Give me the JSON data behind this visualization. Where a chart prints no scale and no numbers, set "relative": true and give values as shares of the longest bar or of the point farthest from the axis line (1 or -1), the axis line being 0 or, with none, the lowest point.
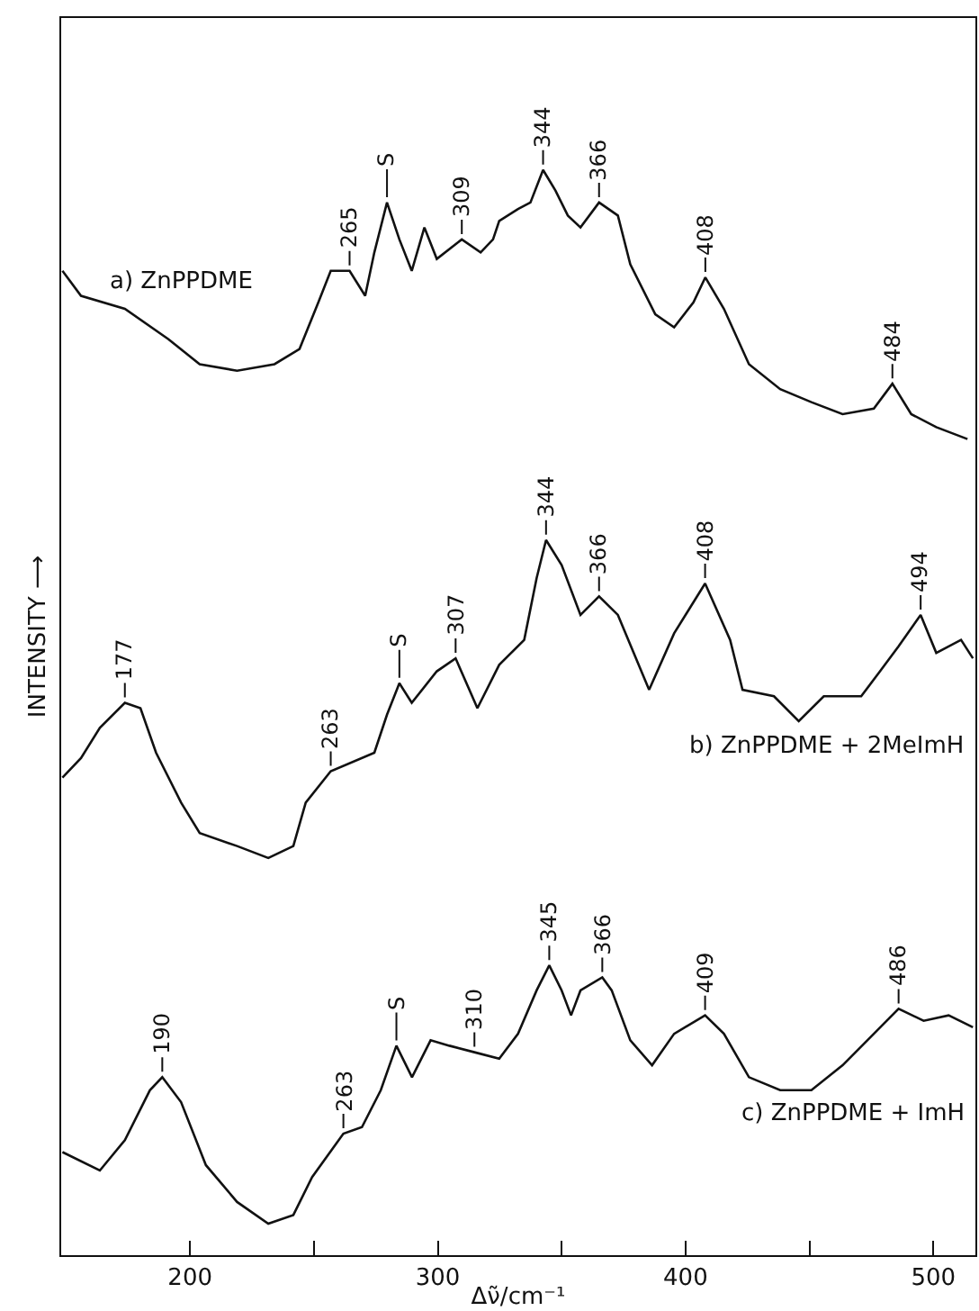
{
  "chart_data": {
    "type": "line",
    "relative": true,
    "xlabel": "Δν̃/cm⁻¹",
    "ylabel": "INTENSITY ⟶",
    "xlim": [
      148,
      517
    ],
    "xticks": [
      200,
      {
        "value": 250,
        "label": null
      },
      300,
      {
        "value": 350,
        "label": null
      },
      400,
      {
        "value": 450,
        "label": null
      },
      500
    ],
    "grid": false,
    "legend": false,
    "marker": "none",
    "line_style": "solid",
    "series": [
      {
        "name": "a) ZnPPDME",
        "color": "#111111",
        "x": [
          148.5,
          156,
          173.7,
          191.3,
          203.9,
          219,
          234.1,
          244.2,
          251.8,
          256.8,
          264.4,
          270.7,
          274.4,
          279.5,
          284.5,
          289.5,
          294.6,
          299.6,
          309.7,
          317.3,
          322.3,
          324.8,
          332.4,
          337.4,
          342.5,
          347.5,
          352.5,
          357.6,
          365.1,
          372.7,
          377.7,
          387.8,
          395.4,
          403.2,
          408,
          415.5,
          425.6,
          438.2,
          450.8,
          463.4,
          476,
          483.5,
          491.1,
          501.2,
          513.8
        ],
        "values": [
          0.907,
          0.884,
          0.872,
          0.844,
          0.821,
          0.815,
          0.821,
          0.835,
          0.878,
          0.907,
          0.907,
          0.884,
          0.924,
          0.97,
          0.936,
          0.907,
          0.947,
          0.918,
          0.936,
          0.924,
          0.936,
          0.953,
          0.964,
          0.97,
          1,
          0.981,
          0.958,
          0.947,
          0.97,
          0.958,
          0.913,
          0.867,
          0.855,
          0.878,
          0.901,
          0.872,
          0.821,
          0.798,
          0.786,
          0.775,
          0.78,
          0.803,
          0.775,
          0.763,
          0.752
        ]
      },
      {
        "name": "b) ZnPPDME + 2MeImH",
        "color": "#111111",
        "x": [
          148.5,
          156,
          163.6,
          173.7,
          180,
          186.3,
          196.4,
          203.9,
          219,
          231.6,
          241.7,
          246.7,
          256.8,
          274.4,
          279.5,
          284.5,
          289.5,
          299.6,
          307.2,
          316,
          324.8,
          334.9,
          339.9,
          343.7,
          350,
          357.6,
          365.1,
          372.7,
          385.3,
          395.4,
          407.9,
          418,
          423,
          435.7,
          445.7,
          455.8,
          470.9,
          478.5,
          486,
          494.9,
          501.2,
          511.2,
          516
        ],
        "values": [
          0.44,
          0.458,
          0.486,
          0.509,
          0.504,
          0.463,
          0.417,
          0.389,
          0.377,
          0.366,
          0.377,
          0.417,
          0.446,
          0.463,
          0.498,
          0.527,
          0.509,
          0.538,
          0.55,
          0.504,
          0.544,
          0.567,
          0.624,
          0.659,
          0.636,
          0.59,
          0.607,
          0.59,
          0.521,
          0.573,
          0.619,
          0.567,
          0.521,
          0.515,
          0.492,
          0.515,
          0.515,
          0.538,
          0.561,
          0.59,
          0.555,
          0.567,
          0.55
        ]
      },
      {
        "name": "c) ZnPPDME + ImH",
        "color": "#111111",
        "x": [
          148.5,
          163.6,
          173.7,
          183.8,
          188.8,
          196.4,
          206.4,
          219,
          231.6,
          241.7,
          249.3,
          261.9,
          269.4,
          277,
          283.3,
          289.6,
          297.1,
          304.7,
          314.8,
          324.8,
          332.4,
          339.9,
          345,
          350,
          353.8,
          357.6,
          366.4,
          370.2,
          377.7,
          386.5,
          395.4,
          407.9,
          415.5,
          425.6,
          438.2,
          450.8,
          463.4,
          476,
          486,
          496.1,
          506.2,
          516
        ],
        "values": [
          0.095,
          0.078,
          0.106,
          0.152,
          0.164,
          0.141,
          0.083,
          0.049,
          0.029,
          0.037,
          0.072,
          0.112,
          0.118,
          0.152,
          0.193,
          0.164,
          0.198,
          0.193,
          0.187,
          0.181,
          0.204,
          0.244,
          0.267,
          0.244,
          0.221,
          0.244,
          0.256,
          0.244,
          0.198,
          0.175,
          0.204,
          0.221,
          0.204,
          0.164,
          0.152,
          0.152,
          0.175,
          0.204,
          0.227,
          0.216,
          0.221,
          0.21
        ]
      }
    ],
    "annotations": [
      {
        "text": "265",
        "x": 264.4,
        "y": 0.907
      },
      {
        "text": "S",
        "x": 279.5,
        "y": 0.97
      },
      {
        "text": "309",
        "x": 309.7,
        "y": 0.936
      },
      {
        "text": "344",
        "x": 342.5,
        "y": 1
      },
      {
        "text": "366",
        "x": 365.1,
        "y": 0.97
      },
      {
        "text": "408",
        "x": 408,
        "y": 0.901
      },
      {
        "text": "484",
        "x": 483.5,
        "y": 0.803
      },
      {
        "text": "177",
        "x": 173.7,
        "y": 0.509
      },
      {
        "text": "263",
        "x": 256.8,
        "y": 0.446
      },
      {
        "text": "S",
        "x": 284.5,
        "y": 0.527
      },
      {
        "text": "307",
        "x": 307.2,
        "y": 0.55
      },
      {
        "text": "344",
        "x": 343.7,
        "y": 0.659
      },
      {
        "text": "366",
        "x": 365.1,
        "y": 0.607
      },
      {
        "text": "408",
        "x": 407.9,
        "y": 0.619
      },
      {
        "text": "494",
        "x": 494.9,
        "y": 0.59
      },
      {
        "text": "190",
        "x": 188.8,
        "y": 0.164
      },
      {
        "text": "263",
        "x": 261.9,
        "y": 0.112
      },
      {
        "text": "S",
        "x": 283.3,
        "y": 0.193
      },
      {
        "text": "310",
        "x": 314.8,
        "y": 0.187
      },
      {
        "text": "345",
        "x": 345,
        "y": 0.267
      },
      {
        "text": "366",
        "x": 366.4,
        "y": 0.256
      },
      {
        "text": "409",
        "x": 407.9,
        "y": 0.221
      },
      {
        "text": "486",
        "x": 486,
        "y": 0.227
      }
    ]
  }
}
